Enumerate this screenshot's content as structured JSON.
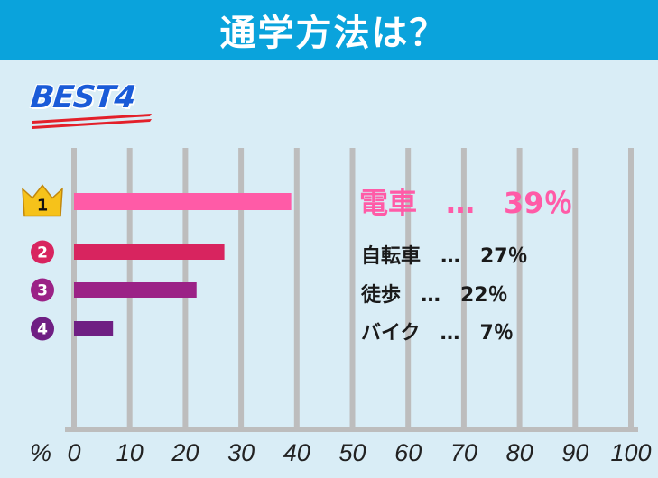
{
  "title": "通学方法は？",
  "heading": "BEST4",
  "chart_data": {
    "type": "bar",
    "orientation": "horizontal",
    "xlabel": "%",
    "xlim": [
      0,
      100
    ],
    "xticks": [
      0,
      10,
      20,
      30,
      40,
      50,
      60,
      70,
      80,
      90,
      100
    ],
    "grid": true,
    "categories": [
      "電車",
      "自転車",
      "徒歩",
      "バイク"
    ],
    "values": [
      39,
      27,
      22,
      7
    ],
    "ranks": [
      "1",
      "2",
      "3",
      "4"
    ],
    "value_labels": [
      "電車　…　39％",
      "自転車　…　27％",
      "徒歩　…　22％",
      "バイク　…　7％"
    ]
  },
  "colors": {
    "title_bar": "#0aa3dc",
    "background": "#d9edf6",
    "grid": "#bdbdbd",
    "heading": "#1a5bd8",
    "crown": "#f6c21a",
    "bars": [
      "#ff5ba7",
      "#d8245f",
      "#9b2286",
      "#6f1f83"
    ],
    "label_top": "#ff5ba7",
    "label_other": "#1a1a1a"
  },
  "icons": {
    "rank1": "crown-icon",
    "rank_other": "number-circle-icon"
  }
}
